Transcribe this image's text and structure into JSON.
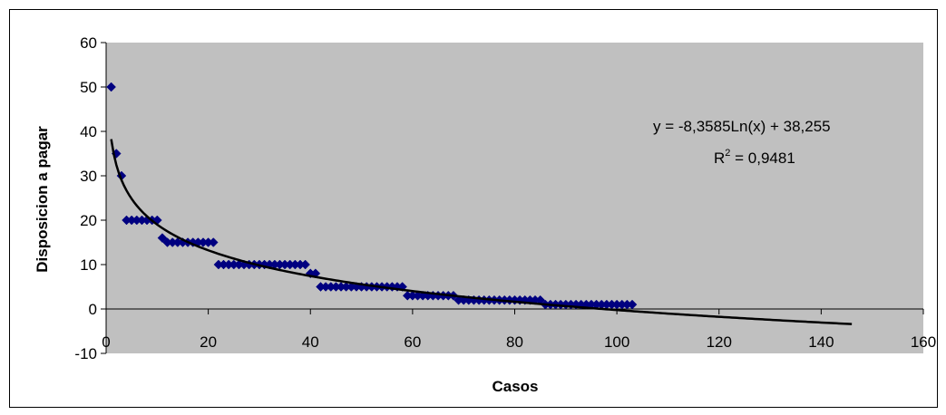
{
  "chart_data": {
    "type": "scatter",
    "title": "",
    "xlabel": "Casos",
    "ylabel": "Disposicion a pagar",
    "xlim": [
      0,
      160
    ],
    "ylim": [
      -10,
      60
    ],
    "xticks": [
      0,
      20,
      40,
      60,
      80,
      100,
      120,
      140,
      160
    ],
    "yticks": [
      -10,
      0,
      10,
      20,
      30,
      40,
      50,
      60
    ],
    "grid": false,
    "plot_background": "#c0c0c0",
    "marker_color": "#000080",
    "trend_color": "#000000",
    "series": [
      {
        "x": [
          1,
          2,
          3,
          4,
          5,
          6,
          7,
          8,
          9,
          10,
          11,
          12,
          13,
          14,
          15,
          16,
          17,
          18,
          19,
          20,
          21,
          22,
          23,
          24,
          25,
          26,
          27,
          28,
          29,
          30,
          31,
          32,
          33,
          34,
          35,
          36,
          37,
          38,
          39,
          40,
          41,
          42,
          43,
          44,
          45,
          46,
          47,
          48,
          49,
          50,
          51,
          52,
          53,
          54,
          55,
          56,
          57,
          58,
          59,
          60,
          61,
          62,
          63,
          64,
          65,
          66,
          67,
          68,
          69,
          70,
          71,
          72,
          73,
          74,
          75,
          76,
          77,
          78,
          79,
          80,
          81,
          82,
          83,
          84,
          85,
          86,
          87,
          88,
          89,
          90,
          91,
          92,
          93,
          94,
          95,
          96,
          97,
          98,
          99,
          100,
          101,
          102,
          103
        ],
        "y": [
          50,
          35,
          30,
          20,
          20,
          20,
          20,
          20,
          20,
          20,
          16,
          15,
          15,
          15,
          15,
          15,
          15,
          15,
          15,
          15,
          15,
          10,
          10,
          10,
          10,
          10,
          10,
          10,
          10,
          10,
          10,
          10,
          10,
          10,
          10,
          10,
          10,
          10,
          10,
          8,
          8,
          5,
          5,
          5,
          5,
          5,
          5,
          5,
          5,
          5,
          5,
          5,
          5,
          5,
          5,
          5,
          5,
          5,
          3,
          3,
          3,
          3,
          3,
          3,
          3,
          3,
          3,
          3,
          2,
          2,
          2,
          2,
          2,
          2,
          2,
          2,
          2,
          2,
          2,
          2,
          2,
          2,
          2,
          2,
          2,
          1,
          1,
          1,
          1,
          1,
          1,
          1,
          1,
          1,
          1,
          1,
          1,
          1,
          1,
          1,
          1,
          1,
          1
        ]
      }
    ],
    "trendline": {
      "type": "logarithmic",
      "a": -8.3585,
      "b": 38.255,
      "x_range": [
        1,
        146
      ],
      "equation": "y = -8,3585Ln(x) + 38,255",
      "r2_prefix": "R",
      "r2_superscript": "2",
      "r2_value": " = 0,9481"
    }
  }
}
